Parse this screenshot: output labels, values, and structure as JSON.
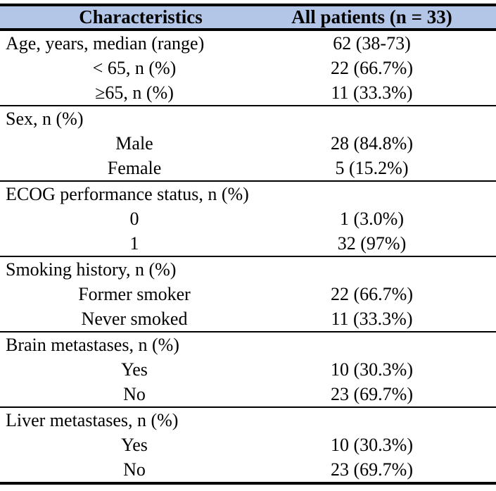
{
  "colors": {
    "header_bg": "#B4C6E7",
    "border": "#000000",
    "text": "#000000"
  },
  "table": {
    "columns": [
      "Characteristics",
      "All patients (n = 33)"
    ],
    "sections": [
      {
        "rows": [
          {
            "label": "Age, years, median (range)",
            "value": "62 (38-73)"
          },
          {
            "label": "< 65, n (%)",
            "value": "22 (66.7%)"
          },
          {
            "label": "≥65, n (%)",
            "value": "11 (33.3%)"
          }
        ]
      },
      {
        "rows": [
          {
            "label": "Sex, n (%)",
            "value": ""
          },
          {
            "label": "Male",
            "value": "28 (84.8%)"
          },
          {
            "label": "Female",
            "value": "5 (15.2%)"
          }
        ]
      },
      {
        "rows": [
          {
            "label": "ECOG performance status, n (%)",
            "value": ""
          },
          {
            "label": "0",
            "value": "1 (3.0%)"
          },
          {
            "label": "1",
            "value": "32 (97%)"
          }
        ]
      },
      {
        "rows": [
          {
            "label": "Smoking history, n (%)",
            "value": ""
          },
          {
            "label": "Former smoker",
            "value": "22 (66.7%)"
          },
          {
            "label": "Never smoked",
            "value": "11 (33.3%)"
          }
        ]
      },
      {
        "rows": [
          {
            "label": "Brain metastases, n (%)",
            "value": ""
          },
          {
            "label": "Yes",
            "value": "10 (30.3%)"
          },
          {
            "label": "No",
            "value": "23 (69.7%)"
          }
        ]
      },
      {
        "rows": [
          {
            "label": "Liver metastases, n (%)",
            "value": ""
          },
          {
            "label": "Yes",
            "value": "10 (30.3%)"
          },
          {
            "label": "No",
            "value": "23 (69.7%)"
          }
        ]
      }
    ]
  }
}
